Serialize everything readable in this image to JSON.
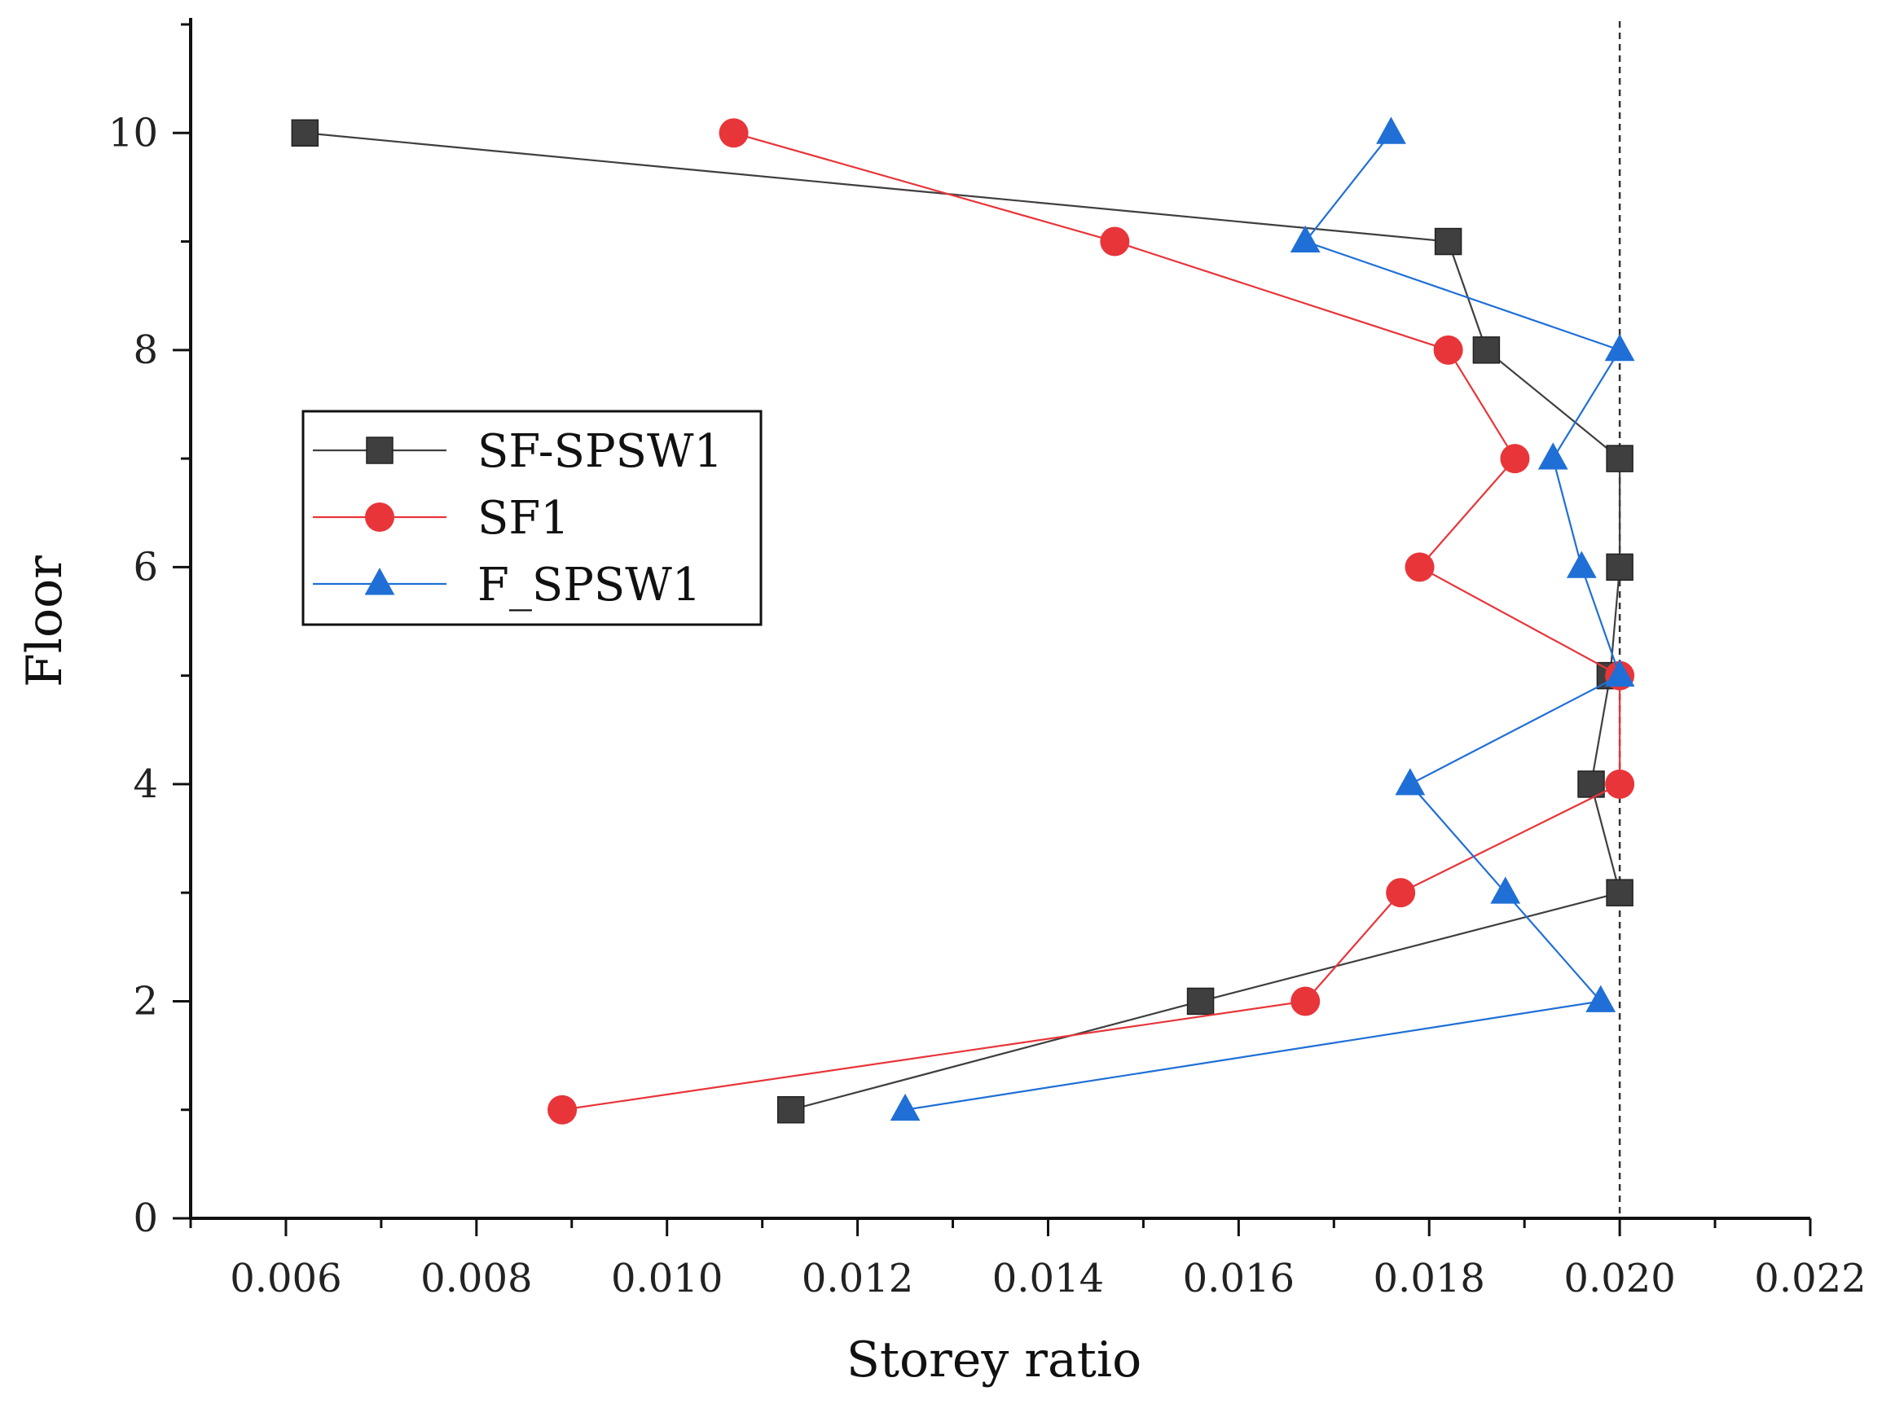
{
  "chart_data": {
    "type": "line",
    "title": "",
    "xlabel": "Storey ratio",
    "ylabel": "Floor",
    "xlim": [
      0.005,
      0.022
    ],
    "ylim": [
      0,
      11
    ],
    "x_ticks": [
      0.006,
      0.008,
      0.01,
      0.012,
      0.014,
      0.016,
      0.018,
      0.02,
      0.022
    ],
    "x_tick_labels": [
      "0.006",
      "0.008",
      "0.010",
      "0.012",
      "0.014",
      "0.016",
      "0.018",
      "0.020",
      "0.022"
    ],
    "y_ticks": [
      0,
      2,
      4,
      6,
      8,
      10
    ],
    "y_tick_labels": [
      "0",
      "2",
      "4",
      "6",
      "8",
      "10"
    ],
    "reference_line": {
      "x": 0.02,
      "style": "dashed"
    },
    "legend_position": "middle-left",
    "series": [
      {
        "name": "SF-SPSW1",
        "marker": "square",
        "color": "#3f3f3f",
        "line_color": "#3f3f3f",
        "points": [
          [
            0.0113,
            1
          ],
          [
            0.0156,
            2
          ],
          [
            0.02,
            3
          ],
          [
            0.0197,
            4
          ],
          [
            0.0199,
            5
          ],
          [
            0.02,
            6
          ],
          [
            0.02,
            7
          ],
          [
            0.0186,
            8
          ],
          [
            0.0182,
            9
          ],
          [
            0.0062,
            10
          ]
        ]
      },
      {
        "name": "SF1",
        "marker": "circle",
        "color": "#e8353a",
        "line_color": "#e8353a",
        "points": [
          [
            0.0089,
            1
          ],
          [
            0.0167,
            2
          ],
          [
            0.0177,
            3
          ],
          [
            0.02,
            4
          ],
          [
            0.02,
            5
          ],
          [
            0.0179,
            6
          ],
          [
            0.0189,
            7
          ],
          [
            0.0182,
            8
          ],
          [
            0.0147,
            9
          ],
          [
            0.0107,
            10
          ]
        ]
      },
      {
        "name": "F_SPSW1",
        "marker": "triangle",
        "color": "#1f6fd6",
        "line_color": "#1f6fd6",
        "points": [
          [
            0.0125,
            1
          ],
          [
            0.0198,
            2
          ],
          [
            0.0188,
            3
          ],
          [
            0.0178,
            4
          ],
          [
            0.02,
            5
          ],
          [
            0.0196,
            6
          ],
          [
            0.0193,
            7
          ],
          [
            0.02,
            8
          ],
          [
            0.0167,
            9
          ],
          [
            0.0176,
            10
          ]
        ]
      }
    ]
  }
}
